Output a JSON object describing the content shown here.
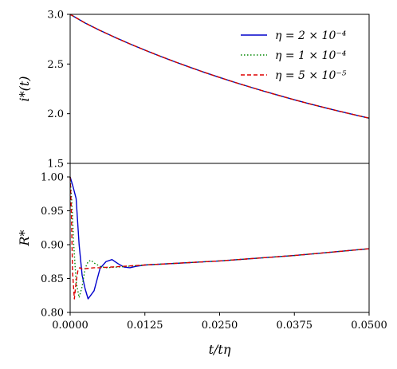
{
  "chart_data": {
    "type": "line",
    "x_ticks": [
      "0.0000",
      "0.0125",
      "0.0250",
      "0.0375",
      "0.0500"
    ],
    "xlabel": "t/tη",
    "xlim": [
      0,
      0.05
    ],
    "legend_position": "top-right",
    "grid": false,
    "panels": [
      {
        "ylabel": "i*(t)",
        "ylim": [
          1.5,
          3.0
        ],
        "y_ticks": [
          "1.5",
          "2.0",
          "2.5",
          "3.0"
        ],
        "series": [
          {
            "name": "η = 2 × 10⁻⁴",
            "color": "#0000cc",
            "dash": "",
            "x": [
              0,
              0.0025,
              0.005,
              0.0075,
              0.01,
              0.0125,
              0.015,
              0.0175,
              0.02,
              0.0225,
              0.025,
              0.0275,
              0.03,
              0.0325,
              0.035,
              0.0375,
              0.04,
              0.0425,
              0.045,
              0.0475,
              0.05
            ],
            "y": [
              3.0,
              2.913,
              2.838,
              2.768,
              2.702,
              2.64,
              2.58,
              2.523,
              2.468,
              2.415,
              2.365,
              2.316,
              2.27,
              2.225,
              2.182,
              2.14,
              2.1,
              2.062,
              2.025,
              1.99,
              1.955
            ]
          },
          {
            "name": "η = 1 × 10⁻⁴",
            "color": "#008800",
            "dash": "1.5,2.5",
            "x": [
              0,
              0.0025,
              0.005,
              0.0075,
              0.01,
              0.0125,
              0.015,
              0.0175,
              0.02,
              0.0225,
              0.025,
              0.0275,
              0.03,
              0.0325,
              0.035,
              0.0375,
              0.04,
              0.0425,
              0.045,
              0.0475,
              0.05
            ],
            "y": [
              3.0,
              2.913,
              2.838,
              2.768,
              2.702,
              2.64,
              2.58,
              2.523,
              2.468,
              2.415,
              2.365,
              2.316,
              2.27,
              2.225,
              2.182,
              2.14,
              2.1,
              2.062,
              2.025,
              1.99,
              1.955
            ]
          },
          {
            "name": "η = 5 × 10⁻⁵",
            "color": "#dd0000",
            "dash": "5,3",
            "x": [
              0,
              0.0025,
              0.005,
              0.0075,
              0.01,
              0.0125,
              0.015,
              0.0175,
              0.02,
              0.0225,
              0.025,
              0.0275,
              0.03,
              0.0325,
              0.035,
              0.0375,
              0.04,
              0.0425,
              0.045,
              0.0475,
              0.05
            ],
            "y": [
              3.0,
              2.913,
              2.838,
              2.768,
              2.702,
              2.64,
              2.58,
              2.523,
              2.468,
              2.415,
              2.365,
              2.316,
              2.27,
              2.225,
              2.182,
              2.14,
              2.1,
              2.062,
              2.025,
              1.99,
              1.955
            ]
          }
        ]
      },
      {
        "ylabel": "R*",
        "ylim": [
          0.8,
          1.02
        ],
        "y_ticks": [
          "0.80",
          "0.85",
          "0.90",
          "0.95",
          "1.00"
        ],
        "series": [
          {
            "name": "η = 2 × 10⁻⁴",
            "color": "#0000cc",
            "dash": "",
            "x": [
              0,
              0.0005,
              0.001,
              0.0015,
              0.002,
              0.0025,
              0.003,
              0.004,
              0.005,
              0.006,
              0.007,
              0.008,
              0.009,
              0.01,
              0.011,
              0.0125,
              0.025,
              0.0375,
              0.05
            ],
            "y": [
              1.0,
              0.985,
              0.968,
              0.9,
              0.855,
              0.835,
              0.82,
              0.832,
              0.865,
              0.875,
              0.878,
              0.872,
              0.867,
              0.866,
              0.868,
              0.87,
              0.876,
              0.884,
              0.894
            ]
          },
          {
            "name": "η = 1 × 10⁻⁴",
            "color": "#008800",
            "dash": "1.5,2.5",
            "x": [
              0,
              0.0003,
              0.0006,
              0.001,
              0.0015,
              0.002,
              0.0025,
              0.003,
              0.0035,
              0.004,
              0.005,
              0.006,
              0.008,
              0.0125,
              0.025,
              0.0375,
              0.05
            ],
            "y": [
              1.0,
              0.96,
              0.9,
              0.845,
              0.822,
              0.838,
              0.865,
              0.875,
              0.877,
              0.873,
              0.868,
              0.866,
              0.867,
              0.87,
              0.876,
              0.884,
              0.894
            ]
          },
          {
            "name": "η = 5 × 10⁻⁵",
            "color": "#dd0000",
            "dash": "5,3",
            "x": [
              0,
              0.0002,
              0.0004,
              0.0007,
              0.001,
              0.0013,
              0.0016,
              0.002,
              0.003,
              0.004,
              0.005,
              0.0125,
              0.025,
              0.0375,
              0.05
            ],
            "y": [
              1.0,
              0.95,
              0.86,
              0.82,
              0.845,
              0.862,
              0.866,
              0.864,
              0.865,
              0.866,
              0.866,
              0.87,
              0.876,
              0.884,
              0.894
            ]
          }
        ]
      }
    ]
  }
}
